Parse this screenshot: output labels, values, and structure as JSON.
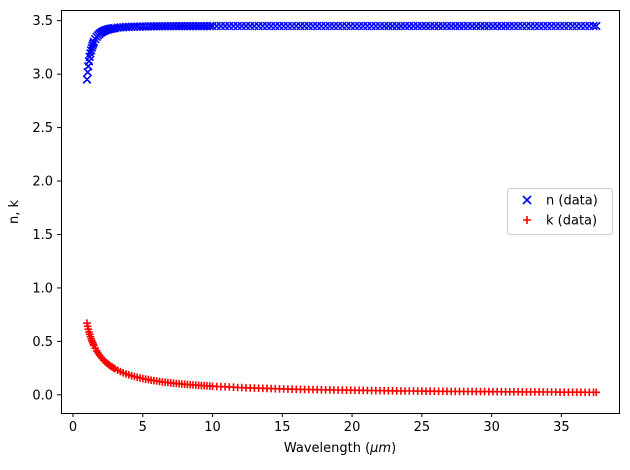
{
  "chart_data": {
    "type": "scatter",
    "title": "",
    "xlabel_prefix": "Wavelength (",
    "xlabel_unit": "μm",
    "xlabel_suffix": ")",
    "ylabel": "n, k",
    "grid": false,
    "legend_position": "center right",
    "xlim": [
      -0.86,
      39.2
    ],
    "ylim": [
      -0.17,
      3.6
    ],
    "xticks": [
      0,
      5,
      10,
      15,
      20,
      25,
      30,
      35
    ],
    "xtick_labels": [
      "0",
      "5",
      "10",
      "15",
      "20",
      "25",
      "30",
      "35"
    ],
    "yticks": [
      0,
      0.5,
      1,
      1.5,
      2,
      2.5,
      3,
      3.5
    ],
    "ytick_labels": [
      "0.0",
      "0.5",
      "1.0",
      "1.5",
      "2.0",
      "2.5",
      "3.0",
      "3.5"
    ],
    "colors": {
      "n_series": "#0000ff",
      "k_series": "#ff0000",
      "spine": "#000000",
      "legend_border": "#cccccc",
      "background": "#ffffff"
    },
    "x": [
      1.0,
      1.05,
      1.1,
      1.15,
      1.2,
      1.25,
      1.3,
      1.35,
      1.4,
      1.45,
      1.5,
      1.6,
      1.7,
      1.8,
      1.9,
      2.0,
      2.1,
      2.2,
      2.3,
      2.4,
      2.5,
      2.6,
      2.7,
      2.8,
      2.9,
      3.0,
      3.2,
      3.4,
      3.6,
      3.8,
      4.0,
      4.2,
      4.4,
      4.6,
      4.8,
      5.0,
      5.2,
      5.4,
      5.6,
      5.8,
      6.0,
      6.2,
      6.4,
      6.6,
      6.8,
      7.0,
      7.2,
      7.4,
      7.6,
      7.8,
      8.0,
      8.2,
      8.4,
      8.6,
      8.8,
      9.0,
      9.2,
      9.4,
      9.6,
      9.8,
      10.0,
      10.3,
      10.6,
      10.9,
      11.2,
      11.5,
      11.8,
      12.1,
      12.4,
      12.7,
      13.0,
      13.3,
      13.6,
      13.9,
      14.2,
      14.5,
      14.8,
      15.1,
      15.4,
      15.7,
      16.0,
      16.3,
      16.6,
      16.9,
      17.2,
      17.5,
      17.8,
      18.1,
      18.4,
      18.7,
      19.0,
      19.3,
      19.6,
      19.9,
      20.2,
      20.5,
      20.8,
      21.1,
      21.4,
      21.7,
      22.0,
      22.3,
      22.6,
      22.9,
      23.2,
      23.5,
      23.8,
      24.1,
      24.4,
      24.7,
      25.0,
      25.3,
      25.6,
      25.9,
      26.2,
      26.5,
      26.8,
      27.1,
      27.4,
      27.7,
      28.0,
      28.3,
      28.6,
      28.9,
      29.2,
      29.5,
      29.8,
      30.1,
      30.4,
      30.7,
      31.0,
      31.3,
      31.6,
      31.9,
      32.2,
      32.5,
      32.8,
      33.1,
      33.4,
      33.7,
      34.0,
      34.3,
      34.6,
      34.9,
      35.2,
      35.5,
      35.8,
      36.1,
      36.4,
      36.7,
      37.0,
      37.3,
      37.5
    ],
    "series": [
      {
        "name": "n (data)",
        "marker": "x",
        "color": "#0000ff",
        "values": [
          2.95,
          3.018,
          3.074,
          3.121,
          3.161,
          3.194,
          3.222,
          3.247,
          3.268,
          3.286,
          3.302,
          3.328,
          3.348,
          3.364,
          3.377,
          3.388,
          3.396,
          3.403,
          3.409,
          3.414,
          3.418,
          3.422,
          3.425,
          3.427,
          3.429,
          3.431,
          3.435,
          3.437,
          3.439,
          3.441,
          3.442,
          3.443,
          3.444,
          3.445,
          3.445,
          3.446,
          3.446,
          3.447,
          3.447,
          3.447,
          3.448,
          3.448,
          3.448,
          3.448,
          3.448,
          3.449,
          3.449,
          3.449,
          3.449,
          3.449,
          3.449,
          3.449,
          3.449,
          3.449,
          3.449,
          3.449,
          3.449,
          3.449,
          3.449,
          3.449,
          3.45,
          3.45,
          3.45,
          3.45,
          3.45,
          3.45,
          3.45,
          3.45,
          3.45,
          3.45,
          3.45,
          3.45,
          3.45,
          3.45,
          3.45,
          3.45,
          3.45,
          3.45,
          3.45,
          3.45,
          3.45,
          3.45,
          3.45,
          3.45,
          3.45,
          3.45,
          3.45,
          3.45,
          3.45,
          3.45,
          3.45,
          3.45,
          3.45,
          3.45,
          3.45,
          3.45,
          3.45,
          3.45,
          3.45,
          3.45,
          3.45,
          3.45,
          3.45,
          3.45,
          3.45,
          3.45,
          3.45,
          3.45,
          3.45,
          3.45,
          3.45,
          3.45,
          3.45,
          3.45,
          3.45,
          3.45,
          3.45,
          3.45,
          3.45,
          3.45,
          3.45,
          3.45,
          3.45,
          3.45,
          3.45,
          3.45,
          3.45,
          3.45,
          3.45,
          3.45,
          3.45,
          3.45,
          3.45,
          3.45,
          3.45,
          3.45,
          3.45,
          3.45,
          3.45,
          3.45,
          3.45,
          3.45,
          3.45,
          3.45,
          3.45,
          3.45,
          3.45,
          3.45,
          3.45,
          3.45,
          3.45,
          3.45,
          3.45
        ]
      },
      {
        "name": "k (data)",
        "marker": "+",
        "color": "#ff0000",
        "values": [
          0.67,
          0.641,
          0.614,
          0.589,
          0.567,
          0.546,
          0.526,
          0.508,
          0.492,
          0.476,
          0.461,
          0.435,
          0.411,
          0.39,
          0.371,
          0.354,
          0.339,
          0.324,
          0.311,
          0.299,
          0.288,
          0.278,
          0.269,
          0.26,
          0.252,
          0.244,
          0.23,
          0.217,
          0.206,
          0.196,
          0.187,
          0.179,
          0.171,
          0.165,
          0.158,
          0.152,
          0.147,
          0.142,
          0.137,
          0.133,
          0.129,
          0.125,
          0.121,
          0.118,
          0.115,
          0.112,
          0.109,
          0.106,
          0.104,
          0.101,
          0.099,
          0.097,
          0.095,
          0.093,
          0.091,
          0.089,
          0.087,
          0.085,
          0.084,
          0.082,
          0.081,
          0.078,
          0.077,
          0.075,
          0.073,
          0.071,
          0.069,
          0.068,
          0.066,
          0.065,
          0.063,
          0.062,
          0.061,
          0.06,
          0.058,
          0.057,
          0.056,
          0.055,
          0.054,
          0.053,
          0.052,
          0.051,
          0.051,
          0.05,
          0.049,
          0.048,
          0.047,
          0.047,
          0.046,
          0.045,
          0.045,
          0.044,
          0.043,
          0.043,
          0.042,
          0.042,
          0.041,
          0.041,
          0.04,
          0.04,
          0.039,
          0.039,
          0.038,
          0.038,
          0.037,
          0.037,
          0.036,
          0.036,
          0.036,
          0.035,
          0.035,
          0.034,
          0.034,
          0.034,
          0.033,
          0.033,
          0.033,
          0.032,
          0.032,
          0.032,
          0.031,
          0.031,
          0.031,
          0.03,
          0.03,
          0.03,
          0.03,
          0.029,
          0.029,
          0.029,
          0.028,
          0.028,
          0.028,
          0.028,
          0.027,
          0.027,
          0.027,
          0.027,
          0.027,
          0.026,
          0.026,
          0.026,
          0.026,
          0.025,
          0.025,
          0.025,
          0.025,
          0.025,
          0.025,
          0.024,
          0.024,
          0.024,
          0.024
        ]
      }
    ]
  }
}
